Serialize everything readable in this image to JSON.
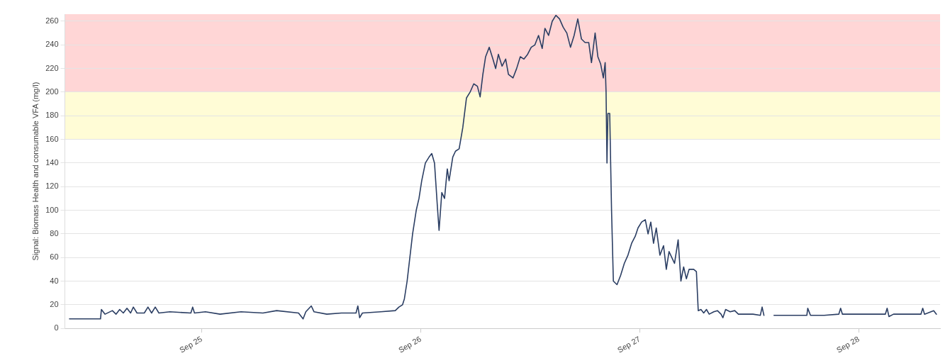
{
  "chart_data": {
    "type": "line",
    "ylabel": "Signal: Biomass Health and consumable VFA (mg/l)",
    "x": [
      "--09-24T09:30",
      "--09-24T10:06",
      "--09-24T12:54",
      "--09-24T13:00",
      "--09-24T13:24",
      "--09-24T14:12",
      "--09-24T14:36",
      "--09-24T15:00",
      "--09-24T15:24",
      "--09-24T15:48",
      "--09-24T16:12",
      "--09-24T16:30",
      "--09-24T16:54",
      "--09-24T17:42",
      "--09-24T18:06",
      "--09-24T18:30",
      "--09-24T18:54",
      "--09-24T19:18",
      "--09-24T20:30",
      "--09-24T22:48",
      "--09-24T23:00",
      "--09-24T23:12",
      "--09-25T00:24",
      "--09-25T02:00",
      "--09-25T04:18",
      "--09-25T06:42",
      "--09-25T08:12",
      "--09-25T10:36",
      "--09-25T11:06",
      "--09-25T11:24",
      "--09-25T12:00",
      "--09-25T12:18",
      "--09-25T13:42",
      "--09-25T15:18",
      "--09-25T16:54",
      "--09-25T17:06",
      "--09-25T17:18",
      "--09-25T17:36",
      "--09-25T19:36",
      "--09-25T21:12",
      "--09-25T21:36",
      "--09-25T22:00",
      "--09-25T22:12",
      "--09-25T22:30",
      "--09-25T22:48",
      "--09-25T23:06",
      "--09-25T23:30",
      "--09-25T23:48",
      "--09-26T00:06",
      "--09-26T00:30",
      "--09-26T00:54",
      "--09-26T01:12",
      "--09-26T01:30",
      "--09-26T01:48",
      "--09-26T02:00",
      "--09-26T02:18",
      "--09-26T02:36",
      "--09-26T02:54",
      "--09-26T03:06",
      "--09-26T03:30",
      "--09-26T03:48",
      "--09-26T04:12",
      "--09-26T04:36",
      "--09-26T05:00",
      "--09-26T05:24",
      "--09-26T05:48",
      "--09-26T06:12",
      "--09-26T06:30",
      "--09-26T06:48",
      "--09-26T07:06",
      "--09-26T07:30",
      "--09-26T07:54",
      "--09-26T08:12",
      "--09-26T08:30",
      "--09-26T08:54",
      "--09-26T09:18",
      "--09-26T09:36",
      "--09-26T10:06",
      "--09-26T10:30",
      "--09-26T10:54",
      "--09-26T11:18",
      "--09-26T11:42",
      "--09-26T12:06",
      "--09-26T12:30",
      "--09-26T12:54",
      "--09-26T13:18",
      "--09-26T13:36",
      "--09-26T14:00",
      "--09-26T14:24",
      "--09-26T14:48",
      "--09-26T15:12",
      "--09-26T15:36",
      "--09-26T16:00",
      "--09-26T16:24",
      "--09-26T16:48",
      "--09-26T17:12",
      "--09-26T17:36",
      "--09-26T18:00",
      "--09-26T18:24",
      "--09-26T18:42",
      "--09-26T19:06",
      "--09-26T19:24",
      "--09-26T19:42",
      "--09-26T20:00",
      "--09-26T20:12",
      "--09-26T20:18",
      "--09-26T20:24",
      "--09-26T20:30",
      "--09-26T20:42",
      "--09-26T20:54",
      "--09-26T21:06",
      "--09-26T21:30",
      "--09-26T21:54",
      "--09-26T22:18",
      "--09-26T22:42",
      "--09-26T23:06",
      "--09-26T23:30",
      "--09-26T23:48",
      "--09-27T00:12",
      "--09-27T00:36",
      "--09-27T00:54",
      "--09-27T01:12",
      "--09-27T01:30",
      "--09-27T01:48",
      "--09-27T02:12",
      "--09-27T02:36",
      "--09-27T02:54",
      "--09-27T03:12",
      "--09-27T03:30",
      "--09-27T03:48",
      "--09-27T04:12",
      "--09-27T04:30",
      "--09-27T04:48",
      "--09-27T05:06",
      "--09-27T05:24",
      "--09-27T05:54",
      "--09-27T06:12",
      "--09-27T06:24",
      "--09-27T06:42",
      "--09-27T07:00",
      "--09-27T07:18",
      "--09-27T07:36",
      "--09-27T08:06",
      "--09-27T08:30",
      "--09-27T08:54",
      "--09-27T09:06",
      "--09-27T09:24",
      "--09-27T09:54",
      "--09-27T10:24",
      "--09-27T10:48",
      "--09-27T11:36",
      "--09-27T12:24",
      "--09-27T13:12",
      "--09-27T13:24",
      "--09-27T13:36",
      "--09-27T14:30",
      "--09-27T14:42",
      "--09-27T17:30",
      "--09-27T18:18",
      "--09-27T18:24",
      "--09-27T18:42",
      "--09-27T20:12",
      "--09-27T21:48",
      "--09-27T22:00",
      "--09-27T22:12",
      "--09-27T23:54",
      "--09-28T02:54",
      "--09-28T03:06",
      "--09-28T03:18",
      "--09-28T03:48",
      "--09-28T05:18",
      "--09-28T06:48",
      "--09-28T07:00",
      "--09-28T07:12",
      "--09-28T08:12",
      "--09-28T08:30"
    ],
    "series": [
      {
        "color": "#2b3e63",
        "values": [
          8,
          8,
          8,
          16,
          12,
          15,
          12,
          16,
          13,
          17,
          13,
          18,
          13,
          13,
          18,
          13,
          18,
          13,
          14,
          13,
          18,
          13,
          14,
          12,
          14,
          13,
          15,
          13,
          8,
          14,
          19,
          14,
          12,
          13,
          13,
          19,
          9,
          13,
          14,
          15,
          18,
          20,
          25,
          40,
          60,
          80,
          100,
          110,
          125,
          140,
          145,
          148,
          140,
          105,
          83,
          115,
          110,
          135,
          125,
          145,
          150,
          152,
          170,
          195,
          200,
          207,
          205,
          196,
          215,
          230,
          238,
          228,
          220,
          232,
          222,
          228,
          215,
          212,
          220,
          230,
          228,
          232,
          238,
          240,
          248,
          237,
          254,
          248,
          260,
          265,
          262,
          255,
          250,
          238,
          248,
          262,
          245,
          242,
          242,
          225,
          250,
          230,
          224,
          212,
          225,
          200,
          140,
          182,
          182,
          100,
          40,
          37,
          45,
          55,
          62,
          72,
          78,
          85,
          90,
          92,
          80,
          90,
          72,
          85,
          62,
          70,
          50,
          65,
          60,
          55,
          75,
          40,
          52,
          42,
          50,
          50,
          48,
          15,
          16,
          13,
          16,
          12,
          14,
          15,
          12,
          9,
          16,
          14,
          15,
          12,
          12,
          12,
          11,
          18,
          11,
          null,
          11,
          11,
          11,
          17,
          11,
          11,
          12,
          17,
          12,
          12,
          12,
          17,
          10,
          12,
          12,
          12,
          17,
          12,
          15,
          12
        ]
      }
    ],
    "xlim": [
      "--09-24T09:00",
      "--09-28T08:54"
    ],
    "xticks": [
      {
        "value": "--09-25",
        "label": "Sep 25"
      },
      {
        "value": "--09-26",
        "label": "Sep 26"
      },
      {
        "value": "--09-27",
        "label": "Sep 27"
      },
      {
        "value": "--09-28",
        "label": "Sep 28"
      }
    ],
    "ylim": [
      0,
      266
    ],
    "yticks": [
      0,
      20,
      40,
      60,
      80,
      100,
      120,
      140,
      160,
      180,
      200,
      220,
      240,
      260
    ],
    "bands": [
      {
        "axis": "y",
        "from": 200,
        "to": 266,
        "color": "#ffd6d6"
      },
      {
        "axis": "y",
        "from": 160,
        "to": 200,
        "color": "#fffcd6"
      }
    ],
    "grid": "y",
    "legend": false,
    "marker": "none",
    "line_style": "solid"
  }
}
